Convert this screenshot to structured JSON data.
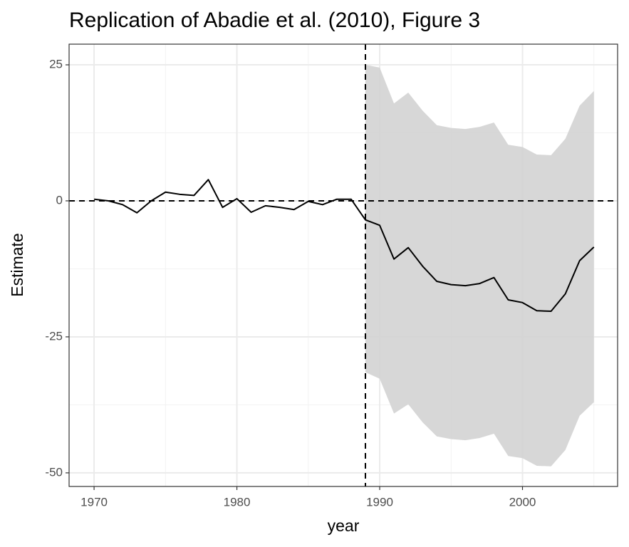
{
  "chart_data": {
    "type": "line",
    "title": "Replication of Abadie et al. (2010), Figure 3",
    "x_label": "year",
    "y_label": "Estimate",
    "x": [
      1970,
      1971,
      1972,
      1973,
      1974,
      1975,
      1976,
      1977,
      1978,
      1979,
      1980,
      1981,
      1982,
      1983,
      1984,
      1985,
      1986,
      1987,
      1988,
      1989,
      1990,
      1991,
      1992,
      1993,
      1994,
      1995,
      1996,
      1997,
      1998,
      1999,
      2000,
      2001,
      2002,
      2003,
      2004,
      2005
    ],
    "series": [
      {
        "name": "Estimate",
        "color": "#000000",
        "values": [
          0.3,
          0,
          -0.7,
          -2.2,
          0,
          1.6,
          1.2,
          1.0,
          3.9,
          -1.2,
          0.4,
          -2.1,
          -0.9,
          -1.2,
          -1.6,
          -0.1,
          -0.7,
          0.3,
          0.3,
          -3.5,
          -4.5,
          -10.7,
          -8.6,
          -12.0,
          -14.8,
          -15.4,
          -15.6,
          -15.2,
          -14.1,
          -18.2,
          -18.7,
          -20.2,
          -20.3,
          -17.1,
          -11.0,
          -8.5
        ]
      }
    ],
    "band": {
      "color": "#d3d3d3",
      "x": [
        1989,
        1990,
        1991,
        1992,
        1993,
        1994,
        1995,
        1996,
        1997,
        1998,
        1999,
        2000,
        2001,
        2002,
        2003,
        2004,
        2005
      ],
      "upper": [
        25,
        24.5,
        17.9,
        19.9,
        16.6,
        13.9,
        13.4,
        13.2,
        13.6,
        14.4,
        10.3,
        9.9,
        8.5,
        8.4,
        11.4,
        17.5,
        20.2
      ],
      "lower": [
        -31.5,
        -32.7,
        -39.1,
        -37.4,
        -40.7,
        -43.3,
        -43.8,
        -44.0,
        -43.6,
        -42.8,
        -46.9,
        -47.3,
        -48.7,
        -48.8,
        -45.8,
        -39.5,
        -37.0
      ]
    },
    "vline": 1989,
    "hline": 0,
    "xlim": [
      1968.25,
      2006.66
    ],
    "ylim": [
      -52.5,
      28.8
    ],
    "xticks": [
      1970,
      1980,
      1990,
      2000
    ],
    "yticks": [
      25,
      0,
      -25,
      -50
    ],
    "minor_xticks": [
      1975,
      1985,
      1995,
      2005
    ],
    "minor_yticks": [
      12.5,
      -12.5,
      -37.5
    ],
    "grid": true
  }
}
